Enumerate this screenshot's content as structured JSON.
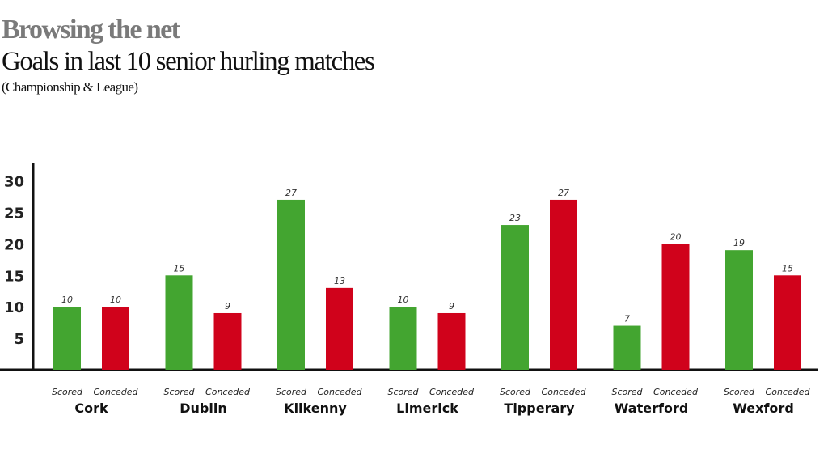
{
  "chart_data": {
    "type": "bar",
    "title": "Browsing the net",
    "subtitle": "Goals in last 10 senior hurling matches",
    "note": "(Championship & League)",
    "categories": [
      "Cork",
      "Dublin",
      "Kilkenny",
      "Limerick",
      "Tipperary",
      "Waterford",
      "Wexford"
    ],
    "series": [
      {
        "name": "Scored",
        "color": "#43a530",
        "values": [
          10,
          15,
          27,
          10,
          23,
          7,
          19
        ]
      },
      {
        "name": "Conceded",
        "color": "#d0021b",
        "values": [
          10,
          9,
          13,
          9,
          27,
          20,
          15
        ]
      }
    ],
    "yticks": [
      5,
      10,
      15,
      20,
      25,
      30
    ],
    "ylim": [
      0,
      30
    ],
    "xlabel": "",
    "ylabel": "",
    "grid": false
  }
}
